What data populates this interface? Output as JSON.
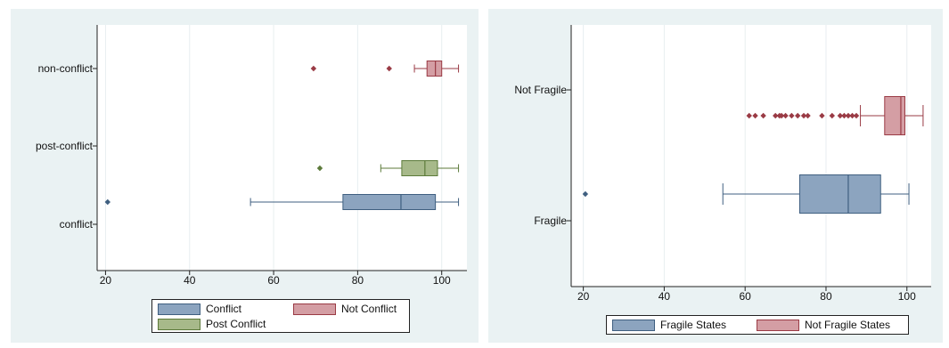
{
  "chart_data": [
    {
      "type": "boxplot",
      "orientation": "horizontal",
      "xlim": [
        18,
        106
      ],
      "xticks": [
        20,
        40,
        60,
        80,
        100
      ],
      "grid": true,
      "legend_position": "bottom",
      "categories": [
        "non-conflict",
        "post-conflict",
        "conflict"
      ],
      "series": [
        {
          "name": "Conflict",
          "color": "#8ca4bf",
          "edge": "#3f5f80",
          "category": "conflict",
          "whisker_low": 54.5,
          "q1": 76.5,
          "median": 90.3,
          "q3": 98.5,
          "whisker_high": 104,
          "outliers": [
            20.5
          ]
        },
        {
          "name": "Post Conflict",
          "color": "#a7b98a",
          "edge": "#5c7a3a",
          "category": "post-conflict",
          "whisker_low": 85.5,
          "q1": 90.5,
          "median": 96,
          "q3": 99,
          "whisker_high": 104,
          "outliers": [
            71
          ]
        },
        {
          "name": "Not Conflict",
          "color": "#d49ea4",
          "edge": "#9a3b45",
          "category": "non-conflict",
          "whisker_low": 93.5,
          "q1": 96.5,
          "median": 98.5,
          "q3": 100,
          "whisker_high": 104,
          "outliers": [
            69.5,
            87.5
          ]
        }
      ],
      "legend": [
        "Conflict",
        "Not Conflict",
        "Post Conflict"
      ]
    },
    {
      "type": "boxplot",
      "orientation": "horizontal",
      "xlim": [
        17,
        106
      ],
      "xticks": [
        20,
        40,
        60,
        80,
        100
      ],
      "grid": true,
      "legend_position": "bottom",
      "categories": [
        "Not Fragile",
        "Fragile"
      ],
      "series": [
        {
          "name": "Fragile States",
          "color": "#8ca4bf",
          "edge": "#3f5f80",
          "category": "Fragile",
          "whisker_low": 54.5,
          "q1": 73.5,
          "median": 85.5,
          "q3": 93.5,
          "whisker_high": 100.5,
          "outliers": [
            20.5
          ]
        },
        {
          "name": "Not Fragile States",
          "color": "#d49ea4",
          "edge": "#9a3b45",
          "category": "Not Fragile",
          "whisker_low": 88.5,
          "q1": 94.5,
          "median": 98.5,
          "q3": 99.5,
          "whisker_high": 104,
          "outliers": [
            61,
            62.5,
            64.5,
            67.5,
            68.5,
            69,
            70,
            71.5,
            73,
            74.5,
            75.5,
            79,
            81.5,
            83.5,
            84.5,
            85.5,
            86.5,
            87.5
          ]
        }
      ],
      "legend": [
        "Fragile States",
        "Not Fragile States"
      ]
    }
  ]
}
